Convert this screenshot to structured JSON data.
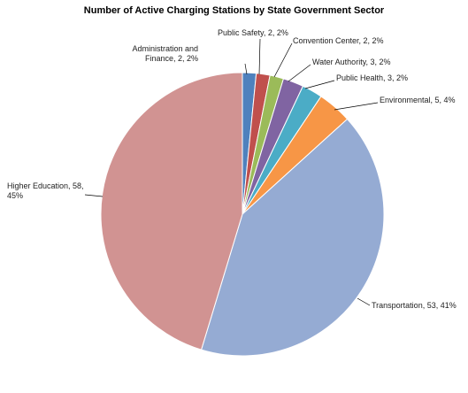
{
  "chart_data": {
    "type": "pie",
    "title": "Number of Active Charging Stations by State Government Sector",
    "start_angle_deg": 0,
    "direction": "clockwise",
    "slices": [
      {
        "name": "Administration and Finance",
        "value": 2,
        "percent": "2%",
        "color": "#4f81bd",
        "label_lines": [
          "Administration and",
          "Finance, 2, 2%"
        ]
      },
      {
        "name": "Public Safety",
        "value": 2,
        "percent": "2%",
        "color": "#c0504d",
        "label_lines": [
          "Public Safety, 2, 2%"
        ]
      },
      {
        "name": "Convention Center",
        "value": 2,
        "percent": "2%",
        "color": "#9bbb59",
        "label_lines": [
          "Convention Center, 2, 2%"
        ]
      },
      {
        "name": "Water Authority",
        "value": 3,
        "percent": "2%",
        "color": "#8064a2",
        "label_lines": [
          "Water Authority, 3, 2%"
        ]
      },
      {
        "name": "Public Health",
        "value": 3,
        "percent": "2%",
        "color": "#4bacc6",
        "label_lines": [
          "Public Health, 3, 2%"
        ]
      },
      {
        "name": "Environmental",
        "value": 5,
        "percent": "4%",
        "color": "#f79646",
        "label_lines": [
          "Environmental, 5, 4%"
        ]
      },
      {
        "name": "Transportation",
        "value": 53,
        "percent": "41%",
        "color": "#95abd3",
        "label_lines": [
          "Transportation, 53, 41%"
        ]
      },
      {
        "name": "Higher Education",
        "value": 58,
        "percent": "45%",
        "color": "#d19392",
        "label_lines": [
          "Higher Education, 58,",
          "45%"
        ]
      }
    ]
  }
}
